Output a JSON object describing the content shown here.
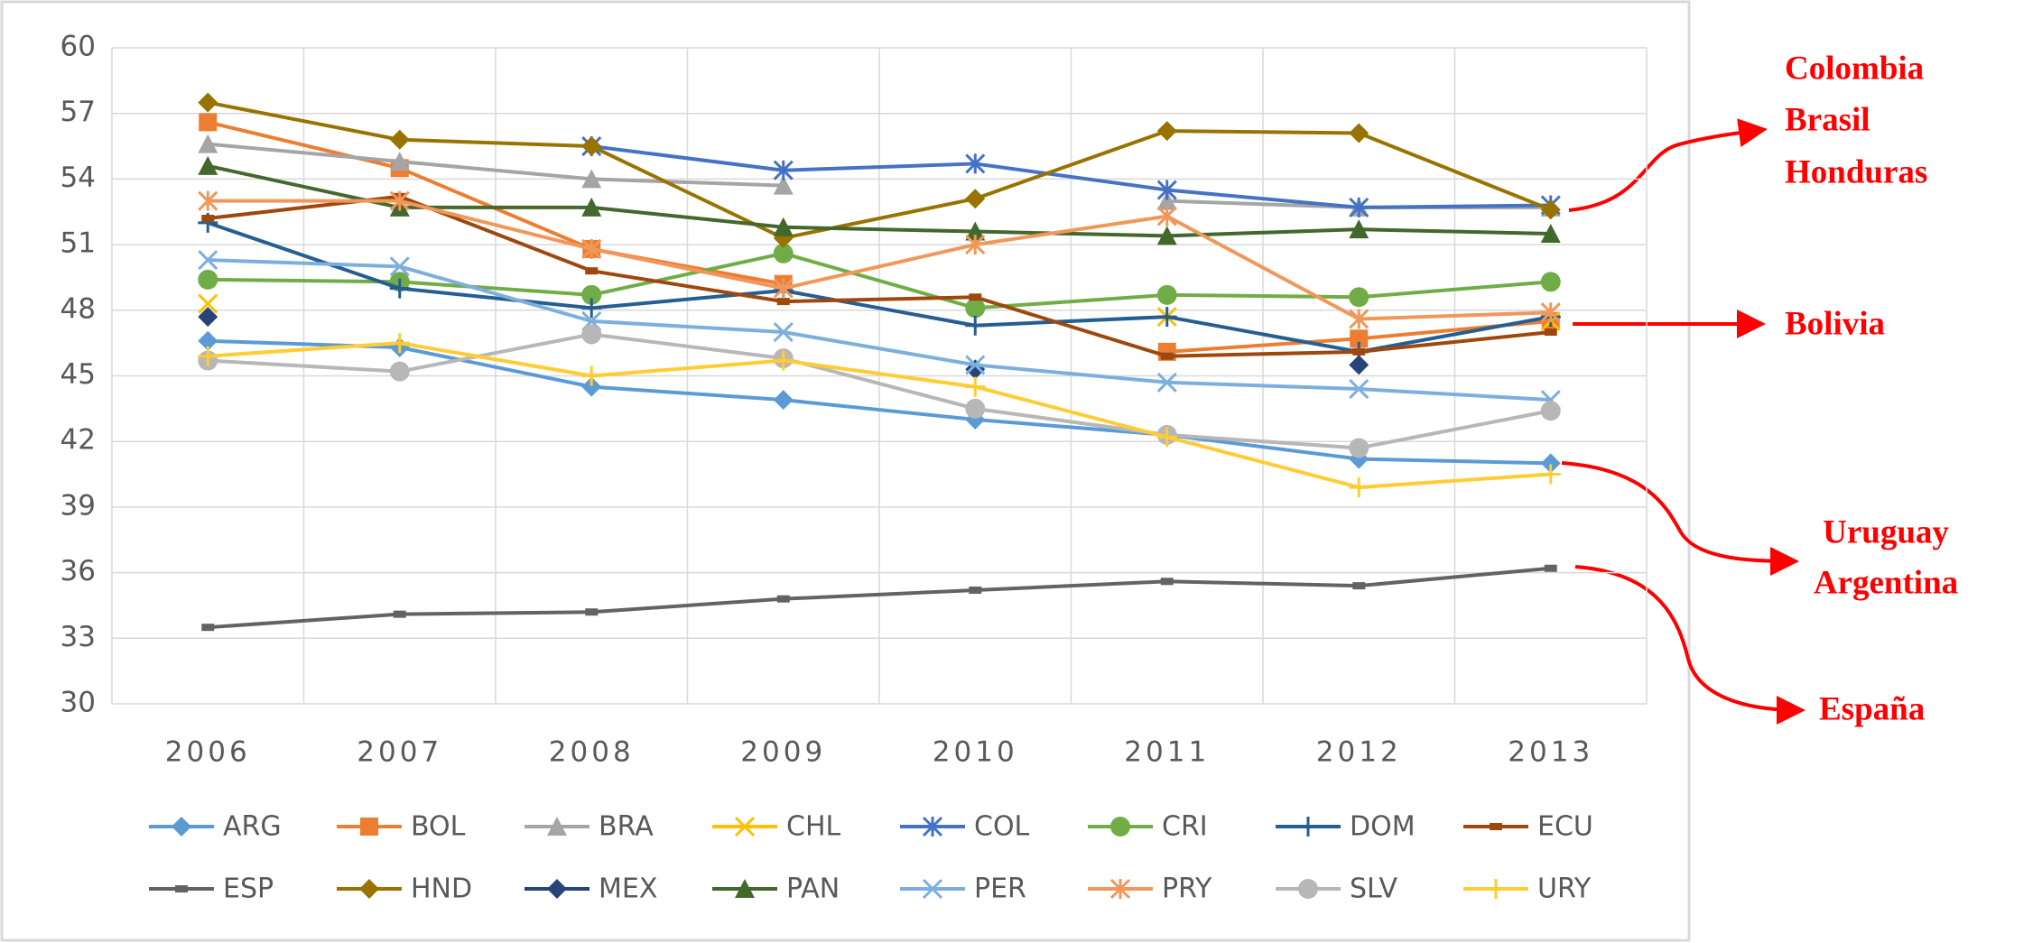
{
  "chart_data": {
    "type": "line",
    "categories": [
      "2006",
      "2007",
      "2008",
      "2009",
      "2010",
      "2011",
      "2012",
      "2013"
    ],
    "ylim": [
      30,
      60
    ],
    "yticks": [
      30,
      33,
      36,
      39,
      42,
      45,
      48,
      51,
      54,
      57,
      60
    ],
    "grid": true,
    "series": [
      {
        "name": "ARG",
        "color": "#5b9bd5",
        "marker": "diamond",
        "values": [
          46.6,
          46.3,
          44.5,
          43.9,
          43.0,
          42.3,
          41.2,
          41.0
        ]
      },
      {
        "name": "BOL",
        "color": "#ed7d31",
        "marker": "square",
        "values": [
          56.6,
          54.5,
          50.8,
          49.2,
          null,
          46.1,
          46.7,
          47.5
        ]
      },
      {
        "name": "BRA",
        "color": "#a5a5a5",
        "marker": "triangle",
        "values": [
          55.6,
          54.8,
          54.0,
          53.7,
          null,
          53.0,
          52.7,
          52.7
        ]
      },
      {
        "name": "CHL",
        "color": "#ffc000",
        "marker": "x",
        "values": [
          48.3,
          null,
          null,
          null,
          null,
          47.7,
          null,
          47.5
        ]
      },
      {
        "name": "COL",
        "color": "#4472c4",
        "marker": "asterisk",
        "values": [
          null,
          null,
          55.5,
          54.4,
          54.7,
          53.5,
          52.7,
          52.8
        ]
      },
      {
        "name": "CRI",
        "color": "#70ad47",
        "marker": "circle",
        "values": [
          49.4,
          49.3,
          48.7,
          50.6,
          48.1,
          48.7,
          48.6,
          49.3
        ]
      },
      {
        "name": "DOM",
        "color": "#255e91",
        "marker": "plus",
        "values": [
          52.0,
          49.0,
          48.1,
          48.9,
          47.3,
          47.7,
          46.1,
          47.7
        ]
      },
      {
        "name": "ECU",
        "color": "#9e480e",
        "marker": "dash",
        "values": [
          52.2,
          53.2,
          49.8,
          48.4,
          48.6,
          45.9,
          46.1,
          47.0
        ]
      },
      {
        "name": "ESP",
        "color": "#636363",
        "marker": "dash",
        "values": [
          33.5,
          34.1,
          34.2,
          34.8,
          35.2,
          35.6,
          35.4,
          36.2
        ]
      },
      {
        "name": "HND",
        "color": "#997300",
        "marker": "diamond",
        "values": [
          57.5,
          55.8,
          55.5,
          51.3,
          53.1,
          56.2,
          56.1,
          52.6
        ]
      },
      {
        "name": "MEX",
        "color": "#264478",
        "marker": "diamond",
        "values": [
          47.7,
          null,
          null,
          null,
          45.3,
          null,
          45.5,
          null
        ]
      },
      {
        "name": "PAN",
        "color": "#43682b",
        "marker": "triangle",
        "values": [
          54.6,
          52.7,
          52.7,
          51.8,
          51.6,
          51.4,
          51.7,
          51.5
        ]
      },
      {
        "name": "PER",
        "color": "#7cafdd",
        "marker": "x",
        "values": [
          50.3,
          50.0,
          47.5,
          47.0,
          45.5,
          44.7,
          44.4,
          43.9
        ]
      },
      {
        "name": "PRY",
        "color": "#f1975a",
        "marker": "asterisk",
        "values": [
          53.0,
          53.0,
          50.8,
          49.0,
          51.0,
          52.3,
          47.6,
          47.9
        ]
      },
      {
        "name": "SLV",
        "color": "#b7b7b7",
        "marker": "circle",
        "values": [
          45.7,
          45.2,
          46.9,
          45.8,
          43.5,
          42.3,
          41.7,
          43.4
        ]
      },
      {
        "name": "URY",
        "color": "#ffcd33",
        "marker": "plus",
        "values": [
          45.9,
          46.5,
          45.0,
          45.7,
          44.5,
          42.2,
          39.9,
          40.5
        ]
      }
    ],
    "annotations": [
      [
        "Colombia",
        "Brasil",
        "Honduras"
      ],
      [
        "Bolivia"
      ],
      [
        "Uruguay",
        "Argentina"
      ],
      [
        "España"
      ]
    ]
  }
}
